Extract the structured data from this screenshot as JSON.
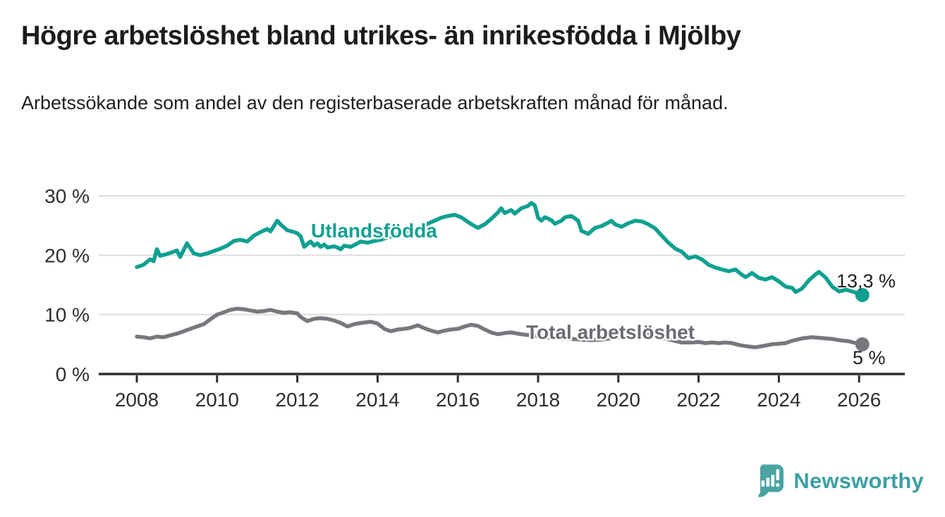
{
  "header": {
    "title": "Högre arbetslöshet bland utrikes- än inrikesfödda i Mjölby",
    "subtitle": "Arbetssökande som andel av den registerbaserade arbetskraften månad för månad."
  },
  "footer": {
    "brand": "Newsworthy",
    "brand_color": "#3d9fa3",
    "logo_icon": "speech-bubble-bar-chart-icon",
    "logo_color": "#4ba3a3"
  },
  "colors": {
    "background": "#ffffff",
    "grid": "#dcdcdc",
    "axis": "#2d2d2d",
    "tick_text": "#2e2e2e",
    "utlandsfodda": "#10a091",
    "total": "#7a767e",
    "total_label": "#6d6a72",
    "end_label_text": "#1f1f1f"
  },
  "chart_data": {
    "type": "line",
    "title": "Högre arbetslöshet bland utrikes- än inrikesfödda i Mjölby",
    "subtitle": "Arbetssökande som andel av den registerbaserade arbetskraften månad för månad.",
    "x_axis": {
      "ticks": [
        2008,
        2010,
        2012,
        2014,
        2016,
        2018,
        2020,
        2022,
        2024,
        2026
      ],
      "range": [
        2007.1,
        2027.1
      ]
    },
    "y_axis": {
      "ticks": [
        0,
        10,
        20,
        30
      ],
      "tick_labels": [
        "0 %",
        "10 %",
        "20 %",
        "30 %"
      ],
      "range": [
        0,
        30
      ],
      "unit": "%"
    },
    "grid": "horizontal-only",
    "legend_position": "inline-labels",
    "series": [
      {
        "name": "Utlandsfödda",
        "color": "#10a091",
        "end_label": "13,3 %",
        "end_value": 13.3,
        "points": [
          [
            2008.0,
            18.0
          ],
          [
            2008.17,
            18.4
          ],
          [
            2008.33,
            19.3
          ],
          [
            2008.42,
            19.0
          ],
          [
            2008.5,
            21.0
          ],
          [
            2008.58,
            19.9
          ],
          [
            2008.75,
            20.2
          ],
          [
            2008.92,
            20.6
          ],
          [
            2009.0,
            20.8
          ],
          [
            2009.08,
            19.7
          ],
          [
            2009.25,
            22.0
          ],
          [
            2009.42,
            20.3
          ],
          [
            2009.58,
            20.0
          ],
          [
            2009.75,
            20.3
          ],
          [
            2009.92,
            20.7
          ],
          [
            2010.08,
            21.1
          ],
          [
            2010.25,
            21.6
          ],
          [
            2010.42,
            22.4
          ],
          [
            2010.58,
            22.6
          ],
          [
            2010.75,
            22.3
          ],
          [
            2010.92,
            23.3
          ],
          [
            2011.08,
            23.9
          ],
          [
            2011.25,
            24.4
          ],
          [
            2011.33,
            24.0
          ],
          [
            2011.5,
            25.8
          ],
          [
            2011.58,
            25.2
          ],
          [
            2011.75,
            24.2
          ],
          [
            2011.92,
            23.9
          ],
          [
            2012.0,
            23.7
          ],
          [
            2012.08,
            23.2
          ],
          [
            2012.17,
            21.4
          ],
          [
            2012.33,
            22.3
          ],
          [
            2012.42,
            21.6
          ],
          [
            2012.5,
            22.0
          ],
          [
            2012.58,
            21.4
          ],
          [
            2012.67,
            21.8
          ],
          [
            2012.75,
            21.3
          ],
          [
            2012.92,
            21.5
          ],
          [
            2013.0,
            21.3
          ],
          [
            2013.08,
            21.0
          ],
          [
            2013.17,
            21.6
          ],
          [
            2013.33,
            21.4
          ],
          [
            2013.5,
            22.0
          ],
          [
            2013.58,
            22.3
          ],
          [
            2013.75,
            22.1
          ],
          [
            2013.92,
            22.4
          ],
          [
            2014.08,
            22.6
          ],
          [
            2014.25,
            23.0
          ],
          [
            2014.42,
            23.3
          ],
          [
            2014.58,
            23.6
          ],
          [
            2014.75,
            24.0
          ],
          [
            2014.92,
            24.4
          ],
          [
            2015.08,
            24.8
          ],
          [
            2015.25,
            25.3
          ],
          [
            2015.42,
            25.8
          ],
          [
            2015.58,
            26.3
          ],
          [
            2015.75,
            26.6
          ],
          [
            2015.92,
            26.8
          ],
          [
            2016.08,
            26.4
          ],
          [
            2016.25,
            25.6
          ],
          [
            2016.42,
            24.9
          ],
          [
            2016.5,
            24.6
          ],
          [
            2016.67,
            25.2
          ],
          [
            2016.83,
            26.1
          ],
          [
            2017.0,
            27.2
          ],
          [
            2017.08,
            27.9
          ],
          [
            2017.17,
            27.1
          ],
          [
            2017.33,
            27.6
          ],
          [
            2017.42,
            27.0
          ],
          [
            2017.58,
            27.9
          ],
          [
            2017.75,
            28.3
          ],
          [
            2017.83,
            28.8
          ],
          [
            2017.92,
            28.4
          ],
          [
            2018.0,
            26.3
          ],
          [
            2018.08,
            25.8
          ],
          [
            2018.17,
            26.4
          ],
          [
            2018.33,
            25.9
          ],
          [
            2018.42,
            25.3
          ],
          [
            2018.58,
            25.8
          ],
          [
            2018.67,
            26.4
          ],
          [
            2018.83,
            26.6
          ],
          [
            2018.92,
            26.2
          ],
          [
            2019.0,
            25.8
          ],
          [
            2019.08,
            24.1
          ],
          [
            2019.25,
            23.6
          ],
          [
            2019.42,
            24.6
          ],
          [
            2019.58,
            24.9
          ],
          [
            2019.75,
            25.5
          ],
          [
            2019.83,
            25.8
          ],
          [
            2019.92,
            25.2
          ],
          [
            2020.08,
            24.8
          ],
          [
            2020.25,
            25.4
          ],
          [
            2020.42,
            25.8
          ],
          [
            2020.58,
            25.7
          ],
          [
            2020.75,
            25.2
          ],
          [
            2020.92,
            24.5
          ],
          [
            2021.08,
            23.3
          ],
          [
            2021.25,
            22.1
          ],
          [
            2021.42,
            21.1
          ],
          [
            2021.58,
            20.6
          ],
          [
            2021.75,
            19.5
          ],
          [
            2021.92,
            19.8
          ],
          [
            2022.08,
            19.3
          ],
          [
            2022.25,
            18.4
          ],
          [
            2022.42,
            17.9
          ],
          [
            2022.58,
            17.6
          ],
          [
            2022.75,
            17.3
          ],
          [
            2022.92,
            17.6
          ],
          [
            2023.08,
            16.7
          ],
          [
            2023.17,
            16.3
          ],
          [
            2023.33,
            17.0
          ],
          [
            2023.5,
            16.2
          ],
          [
            2023.67,
            15.9
          ],
          [
            2023.83,
            16.3
          ],
          [
            2024.0,
            15.6
          ],
          [
            2024.17,
            14.7
          ],
          [
            2024.33,
            14.5
          ],
          [
            2024.42,
            13.8
          ],
          [
            2024.58,
            14.4
          ],
          [
            2024.75,
            15.8
          ],
          [
            2024.92,
            16.8
          ],
          [
            2025.0,
            17.2
          ],
          [
            2025.17,
            16.2
          ],
          [
            2025.33,
            14.7
          ],
          [
            2025.5,
            13.9
          ],
          [
            2025.67,
            14.2
          ],
          [
            2025.83,
            13.9
          ],
          [
            2025.92,
            13.7
          ],
          [
            2026.08,
            13.3
          ]
        ]
      },
      {
        "name": "Total arbetslöshet",
        "color": "#7a767e",
        "end_label": "5 %",
        "end_value": 5.0,
        "points": [
          [
            2008.0,
            6.3
          ],
          [
            2008.17,
            6.2
          ],
          [
            2008.33,
            6.0
          ],
          [
            2008.5,
            6.3
          ],
          [
            2008.67,
            6.2
          ],
          [
            2008.83,
            6.5
          ],
          [
            2009.0,
            6.8
          ],
          [
            2009.17,
            7.2
          ],
          [
            2009.33,
            7.6
          ],
          [
            2009.5,
            8.0
          ],
          [
            2009.67,
            8.4
          ],
          [
            2009.83,
            9.2
          ],
          [
            2010.0,
            10.0
          ],
          [
            2010.17,
            10.4
          ],
          [
            2010.33,
            10.8
          ],
          [
            2010.5,
            11.0
          ],
          [
            2010.67,
            10.9
          ],
          [
            2010.83,
            10.7
          ],
          [
            2011.0,
            10.5
          ],
          [
            2011.17,
            10.6
          ],
          [
            2011.33,
            10.8
          ],
          [
            2011.5,
            10.5
          ],
          [
            2011.67,
            10.3
          ],
          [
            2011.83,
            10.4
          ],
          [
            2012.0,
            10.2
          ],
          [
            2012.08,
            9.6
          ],
          [
            2012.25,
            8.9
          ],
          [
            2012.42,
            9.3
          ],
          [
            2012.58,
            9.4
          ],
          [
            2012.75,
            9.3
          ],
          [
            2012.92,
            9.0
          ],
          [
            2013.08,
            8.6
          ],
          [
            2013.25,
            8.0
          ],
          [
            2013.42,
            8.4
          ],
          [
            2013.58,
            8.6
          ],
          [
            2013.83,
            8.8
          ],
          [
            2014.0,
            8.5
          ],
          [
            2014.17,
            7.6
          ],
          [
            2014.33,
            7.2
          ],
          [
            2014.5,
            7.5
          ],
          [
            2014.67,
            7.6
          ],
          [
            2014.83,
            7.8
          ],
          [
            2015.0,
            8.2
          ],
          [
            2015.17,
            7.7
          ],
          [
            2015.33,
            7.3
          ],
          [
            2015.5,
            7.0
          ],
          [
            2015.67,
            7.3
          ],
          [
            2015.83,
            7.5
          ],
          [
            2016.0,
            7.6
          ],
          [
            2016.17,
            8.0
          ],
          [
            2016.33,
            8.3
          ],
          [
            2016.5,
            8.1
          ],
          [
            2016.67,
            7.5
          ],
          [
            2016.83,
            7.0
          ],
          [
            2017.0,
            6.7
          ],
          [
            2017.17,
            6.9
          ],
          [
            2017.33,
            7.0
          ],
          [
            2017.58,
            6.7
          ],
          [
            2017.83,
            6.5
          ],
          [
            2018.08,
            6.3
          ],
          [
            2018.33,
            6.1
          ],
          [
            2018.58,
            6.0
          ],
          [
            2018.83,
            5.9
          ],
          [
            2019.08,
            5.8
          ],
          [
            2019.33,
            5.7
          ],
          [
            2019.58,
            5.8
          ],
          [
            2019.83,
            6.0
          ],
          [
            2020.08,
            6.3
          ],
          [
            2020.33,
            6.6
          ],
          [
            2020.58,
            6.8
          ],
          [
            2020.83,
            6.5
          ],
          [
            2021.08,
            6.1
          ],
          [
            2021.33,
            5.7
          ],
          [
            2021.58,
            5.3
          ],
          [
            2021.83,
            5.3
          ],
          [
            2022.0,
            5.4
          ],
          [
            2022.17,
            5.2
          ],
          [
            2022.33,
            5.3
          ],
          [
            2022.5,
            5.2
          ],
          [
            2022.67,
            5.3
          ],
          [
            2022.83,
            5.2
          ],
          [
            2023.0,
            4.9
          ],
          [
            2023.17,
            4.7
          ],
          [
            2023.42,
            4.5
          ],
          [
            2023.67,
            4.8
          ],
          [
            2023.83,
            5.0
          ],
          [
            2024.0,
            5.1
          ],
          [
            2024.17,
            5.2
          ],
          [
            2024.33,
            5.6
          ],
          [
            2024.58,
            6.0
          ],
          [
            2024.83,
            6.2
          ],
          [
            2025.0,
            6.1
          ],
          [
            2025.17,
            6.0
          ],
          [
            2025.33,
            5.9
          ],
          [
            2025.5,
            5.7
          ],
          [
            2025.75,
            5.5
          ],
          [
            2025.92,
            5.2
          ],
          [
            2026.08,
            5.0
          ]
        ]
      }
    ]
  }
}
